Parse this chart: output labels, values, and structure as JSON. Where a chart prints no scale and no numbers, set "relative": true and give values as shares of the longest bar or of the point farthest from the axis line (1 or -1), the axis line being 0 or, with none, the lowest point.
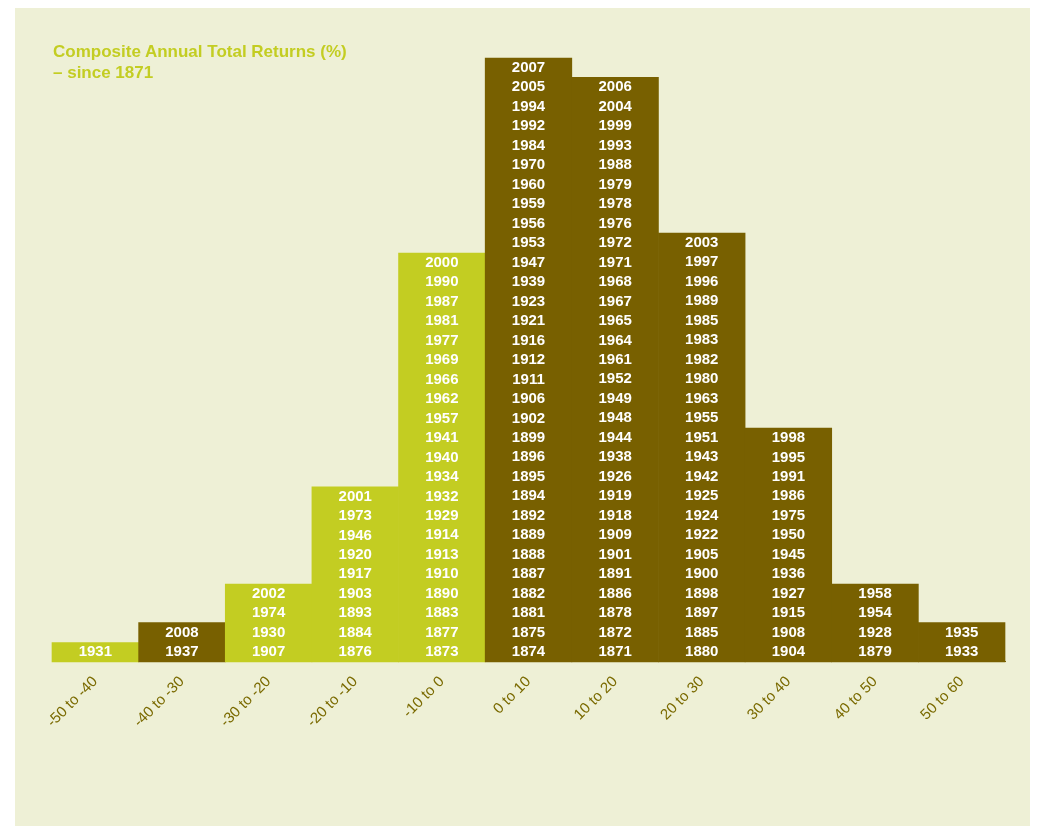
{
  "chart_data": {
    "type": "bar",
    "title": "Composite Annual Total Returns (%) – since 1871",
    "categories": [
      "-50 to -40",
      "-40 to -30",
      "-30 to -20",
      "-20 to -10",
      "-10 to 0",
      "0 to 10",
      "10 to 20",
      "20 to 30",
      "30 to 40",
      "40 to 50",
      "50 to 60"
    ],
    "values": [
      0.032,
      0.065,
      0.129,
      0.29,
      0.677,
      1,
      0.968,
      0.71,
      0.387,
      0.129,
      0.065
    ],
    "relative": true,
    "colors": [
      "#c3cd22",
      "#786000",
      "#c3cd22",
      "#c3cd22",
      "#c3cd22",
      "#786000",
      "#786000",
      "#786000",
      "#786000",
      "#786000",
      "#786000"
    ],
    "annotations": [
      "1931",
      "2008\n1937",
      "2002\n1974\n1930\n1907",
      "2001\n1973\n1946\n1920\n1917\n1903\n1893\n1884\n1876",
      "2000\n1990\n1987\n1981\n1977\n1969\n1966\n1962\n1957\n1941\n1940\n1934\n1932\n1929\n1914\n1913\n1910\n1890\n1883\n1877\n1873",
      "2007\n2005\n1994\n1992\n1984\n1970\n1960\n1959\n1956\n1953\n1947\n1939\n1923\n1921\n1916\n1912\n1911\n1906\n1902\n1899\n1896\n1895\n1894\n1892\n1889\n1888\n1887\n1882\n1881\n1875\n1874",
      "2006\n2004\n1999\n1993\n1988\n1979\n1978\n1976\n1972\n1971\n1968\n1967\n1965\n1964\n1961\n1952\n1949\n1948\n1944\n1938\n1926\n1919\n1918\n1909\n1901\n1891\n1886\n1878\n1872\n1871",
      "2003\n1997\n1996\n1989\n1985\n1983\n1982\n1980\n1963\n1955\n1951\n1943\n1942\n1925\n1924\n1922\n1905\n1900\n1898\n1897\n1885\n1880",
      "1998\n1995\n1991\n1986\n1975\n1950\n1945\n1936\n1927\n1915\n1908\n1904",
      "1958\n1954\n1928\n1879",
      "1935\n1933"
    ],
    "grid": false,
    "legend": false
  }
}
